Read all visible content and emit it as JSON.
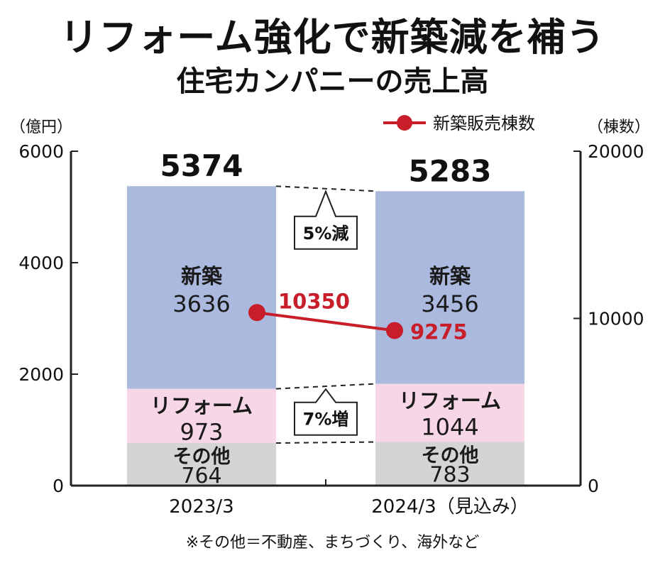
{
  "chart_data": {
    "type": "bar",
    "stacked": true,
    "title": "リフォーム強化で新築減を補う",
    "subtitle": "住宅カンパニーの売上高",
    "categories": [
      "2023/3",
      "2024/3（見込み）"
    ],
    "y_left": {
      "unit_label": "（億円）",
      "range": [
        0,
        6000
      ],
      "ticks": [
        0,
        2000,
        4000,
        6000
      ]
    },
    "y_right": {
      "unit_label": "（棟数）",
      "range": [
        0,
        20000
      ],
      "ticks": [
        0,
        10000,
        20000
      ]
    },
    "series": [
      {
        "name": "その他",
        "values": [
          764,
          783
        ],
        "color": "#d3d4d5"
      },
      {
        "name": "リフォーム",
        "values": [
          973,
          1044
        ],
        "color": "#f7d6e6"
      },
      {
        "name": "新築",
        "values": [
          3636,
          3456
        ],
        "color": "#abb9de"
      }
    ],
    "totals": [
      "5374",
      "5283"
    ],
    "line": {
      "name": "新築販売棟数",
      "values": [
        10350,
        9275
      ],
      "labels": [
        "10350",
        "9275"
      ],
      "axis": "right",
      "color": "#c81e2a"
    },
    "annotations": [
      {
        "text": "5%減",
        "between": "新築"
      },
      {
        "text": "7%増",
        "between": "リフォーム"
      }
    ],
    "legend": {
      "position": "top-right"
    }
  },
  "note": "※その他＝不動産、まちづくり、海外など"
}
